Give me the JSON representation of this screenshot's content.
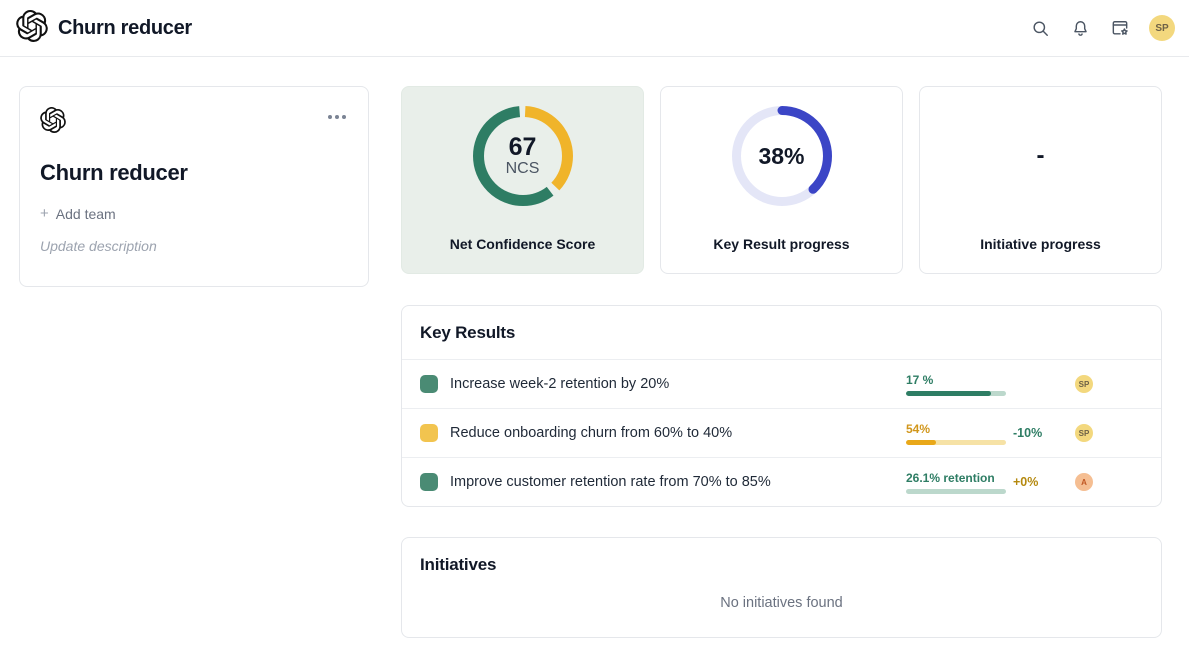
{
  "header": {
    "app_title": "Churn reducer",
    "avatar_initials": "SP"
  },
  "objective_card": {
    "title": "Churn reducer",
    "plus": "+",
    "add_team_label": "Add team",
    "description_placeholder": "Update description"
  },
  "metrics": {
    "ncs": {
      "value": "67",
      "unit": "NCS",
      "label": "Net Confidence Score",
      "donut": {
        "size": 100,
        "stroke": 11,
        "linecap": "butt",
        "segments": [
          {
            "color": "#F0B42A",
            "from": 0.8,
            "to": 37
          },
          {
            "color": "#2E7D64",
            "from": 39.5,
            "to": 98.6
          }
        ]
      }
    },
    "key_result_progress": {
      "value": "38%",
      "label": "Key Result progress",
      "donut": {
        "size": 100,
        "stroke": 9,
        "linecap": "round",
        "track": "#E4E6F7",
        "segments": [
          {
            "color": "#3B45C6",
            "from": 0,
            "to": 38
          }
        ]
      }
    },
    "initiative_progress": {
      "value": "-",
      "label": "Initiative progress"
    }
  },
  "key_results": {
    "title": "Key Results",
    "rows": [
      {
        "name": "Increase week-2 retention by 20%",
        "icon_color": "#4A8B74",
        "progress_label": "17 %",
        "label_color": "#2E7D64",
        "progress": {
          "pct": 85,
          "fill": "#2E7D64",
          "track": "#BCD8CC"
        },
        "delta": "",
        "delta_color": "#2E7D64",
        "avatar": {
          "initials": "SP",
          "bg": "#F3D87E",
          "color": "#6E6247"
        }
      },
      {
        "name": "Reduce onboarding churn from 60% to 40%",
        "icon_color": "#F2C44F",
        "progress_label": "54%",
        "label_color": "#D1961B",
        "progress": {
          "pct": 30,
          "fill": "#E9A819",
          "track": "#F6E2A6"
        },
        "delta": "-10%",
        "delta_color": "#2E7D64",
        "avatar": {
          "initials": "SP",
          "bg": "#F3D87E",
          "color": "#6E6247"
        }
      },
      {
        "name": "Improve customer retention rate from 70% to 85%",
        "icon_color": "#4A8B74",
        "progress_label": "26.1% retention",
        "label_color": "#2E7D64",
        "progress": {
          "pct": 0,
          "fill": "#2E7D64",
          "track": "#BCD8CC"
        },
        "delta": "+0%",
        "delta_color": "#B5890F",
        "avatar": {
          "initials": "A",
          "bg": "#F5BE92",
          "color": "#C05621"
        }
      }
    ]
  },
  "initiatives": {
    "title": "Initiatives",
    "empty_message": "No initiatives found"
  }
}
